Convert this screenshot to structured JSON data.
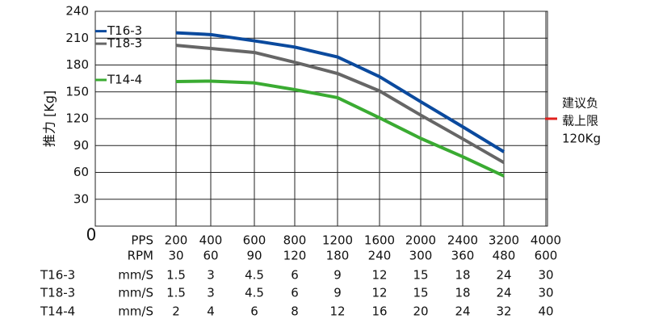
{
  "chart_data": {
    "type": "line",
    "y_label": "推力 [Kg]",
    "categories_label": "PPS",
    "categories": [
      "200",
      "400",
      "600",
      "800",
      "1200",
      "1600",
      "2000",
      "2400",
      "3200",
      "4000"
    ],
    "rpm_label": "RPM",
    "rpm": [
      30,
      60,
      90,
      120,
      180,
      240,
      300,
      360,
      480,
      600
    ],
    "ylim": [
      0,
      240
    ],
    "yticks": [
      0,
      30,
      60,
      90,
      120,
      150,
      180,
      210,
      240
    ],
    "grid": true,
    "series": [
      {
        "name": "T16-3",
        "color": "#0b4a9e",
        "unit": "mm/S",
        "values": [
          216,
          214,
          207,
          200,
          189,
          167,
          139,
          111,
          83,
          null
        ],
        "speeds": [
          1.5,
          3,
          4.5,
          6,
          9,
          12,
          15,
          18,
          24,
          30
        ]
      },
      {
        "name": "T18-3",
        "color": "#666666",
        "unit": "mm/S",
        "values": [
          202,
          198.5,
          194,
          183,
          170.5,
          151,
          124,
          97.5,
          71,
          null
        ],
        "speeds": [
          1.5,
          3,
          4.5,
          6,
          9,
          12,
          15,
          18,
          24,
          30
        ]
      },
      {
        "name": "T14-4",
        "color": "#3aab32",
        "unit": "mm/S",
        "values": [
          161.5,
          162,
          160,
          152.5,
          143.5,
          121,
          98,
          77.5,
          56,
          null
        ],
        "speeds": [
          2,
          4,
          6,
          8,
          12,
          16,
          20,
          24,
          32,
          40
        ]
      }
    ],
    "limit": {
      "value": 120,
      "color": "#e0201c",
      "label_lines": [
        "建议负",
        "载上限",
        "120Kg"
      ]
    }
  }
}
